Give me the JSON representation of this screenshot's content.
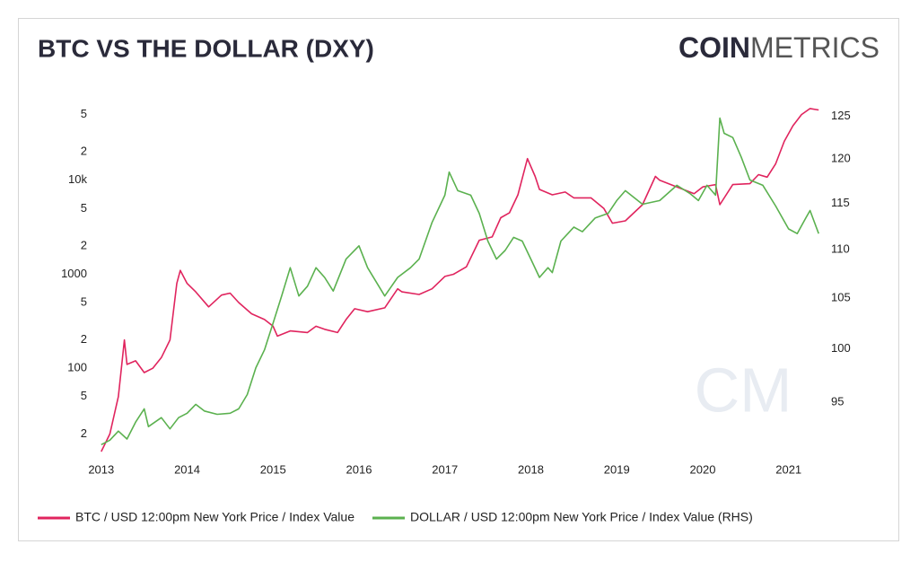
{
  "chart_data": {
    "type": "line",
    "title": "BTC VS THE DOLLAR (DXY)",
    "logo": {
      "bold": "COIN",
      "light": "METRICS"
    },
    "watermark": "CM",
    "xlim": [
      2012.95,
      2021.4
    ],
    "xticks": [
      2013,
      2014,
      2015,
      2016,
      2017,
      2018,
      2019,
      2020,
      2021
    ],
    "log_scale_y": true,
    "ylim": [
      13,
      66000
    ],
    "yticks": [
      {
        "value": 20,
        "label": "2"
      },
      {
        "value": 50,
        "label": "5"
      },
      100,
      {
        "value": 200,
        "label": "2"
      },
      {
        "value": 500,
        "label": "5"
      },
      1000,
      {
        "value": 2000,
        "label": "2"
      },
      {
        "value": 5000,
        "label": "5"
      },
      {
        "value": 10000,
        "label": "10k"
      },
      {
        "value": 20000,
        "label": "2"
      },
      {
        "value": 50000,
        "label": "5"
      }
    ],
    "log_scale_y2": true,
    "y2lim": [
      90.6,
      126.6
    ],
    "y2ticks": [
      95,
      100,
      105,
      110,
      115,
      120,
      125
    ],
    "grid": false,
    "legend": "bottom",
    "series": [
      {
        "name": "BTC / USD 12:00pm New York Price / Index Value",
        "color": "#e0245e",
        "axis": "y",
        "x": [
          2013.0,
          2013.1,
          2013.2,
          2013.27,
          2013.3,
          2013.4,
          2013.5,
          2013.6,
          2013.7,
          2013.8,
          2013.88,
          2013.92,
          2014.0,
          2014.1,
          2014.25,
          2014.4,
          2014.5,
          2014.6,
          2014.75,
          2014.9,
          2015.0,
          2015.05,
          2015.2,
          2015.4,
          2015.5,
          2015.6,
          2015.75,
          2015.85,
          2015.95,
          2016.1,
          2016.3,
          2016.45,
          2016.5,
          2016.7,
          2016.85,
          2017.0,
          2017.1,
          2017.25,
          2017.4,
          2017.55,
          2017.65,
          2017.75,
          2017.85,
          2017.96,
          2018.05,
          2018.1,
          2018.25,
          2018.4,
          2018.5,
          2018.7,
          2018.85,
          2018.95,
          2019.1,
          2019.3,
          2019.45,
          2019.5,
          2019.7,
          2019.9,
          2020.0,
          2020.15,
          2020.2,
          2020.35,
          2020.55,
          2020.65,
          2020.75,
          2020.85,
          2020.95,
          2021.05,
          2021.15,
          2021.25,
          2021.35
        ],
        "values": [
          13,
          20,
          50,
          200,
          110,
          120,
          90,
          100,
          130,
          200,
          800,
          1100,
          800,
          650,
          450,
          600,
          630,
          500,
          380,
          330,
          280,
          220,
          250,
          240,
          280,
          260,
          240,
          330,
          430,
          400,
          440,
          700,
          650,
          610,
          700,
          950,
          1000,
          1200,
          2300,
          2500,
          4000,
          4500,
          7000,
          17000,
          11000,
          8000,
          7000,
          7500,
          6500,
          6500,
          5000,
          3500,
          3700,
          5500,
          11000,
          10000,
          8500,
          7200,
          8500,
          9000,
          5500,
          9000,
          9200,
          11500,
          10800,
          15000,
          26000,
          38000,
          50000,
          58000,
          56000
        ]
      },
      {
        "name": "DOLLAR / USD 12:00pm New York Price / Index Value (RHS)",
        "color": "#5bb14f",
        "axis": "y2",
        "x": [
          2013.0,
          2013.1,
          2013.2,
          2013.3,
          2013.4,
          2013.5,
          2013.55,
          2013.7,
          2013.8,
          2013.9,
          2014.0,
          2014.1,
          2014.2,
          2014.35,
          2014.5,
          2014.6,
          2014.7,
          2014.8,
          2014.9,
          2015.0,
          2015.1,
          2015.2,
          2015.3,
          2015.4,
          2015.5,
          2015.6,
          2015.7,
          2015.85,
          2016.0,
          2016.1,
          2016.3,
          2016.45,
          2016.6,
          2016.7,
          2016.85,
          2017.0,
          2017.05,
          2017.15,
          2017.3,
          2017.4,
          2017.5,
          2017.6,
          2017.7,
          2017.8,
          2017.9,
          2018.0,
          2018.1,
          2018.2,
          2018.25,
          2018.35,
          2018.5,
          2018.6,
          2018.75,
          2018.9,
          2019.0,
          2019.1,
          2019.3,
          2019.5,
          2019.7,
          2019.85,
          2019.95,
          2020.05,
          2020.15,
          2020.2,
          2020.25,
          2020.35,
          2020.45,
          2020.55,
          2020.7,
          2020.85,
          2021.0,
          2021.1,
          2021.2,
          2021.25,
          2021.35
        ],
        "values": [
          91.2,
          91.6,
          92.4,
          91.7,
          93.2,
          94.4,
          92.8,
          93.6,
          92.6,
          93.6,
          94.0,
          94.8,
          94.2,
          93.9,
          94.0,
          94.4,
          95.7,
          98.2,
          99.9,
          102.5,
          105.2,
          108.1,
          105.2,
          106.2,
          108.1,
          107.1,
          105.7,
          109.0,
          110.4,
          108.1,
          105.2,
          107.1,
          108.1,
          109.0,
          112.9,
          115.9,
          118.5,
          116.4,
          115.9,
          113.9,
          110.9,
          109.0,
          109.9,
          111.3,
          110.9,
          109.0,
          107.1,
          108.1,
          107.6,
          110.9,
          112.4,
          111.9,
          113.4,
          113.9,
          115.3,
          116.4,
          114.9,
          115.3,
          117.0,
          116.1,
          115.3,
          117.0,
          115.9,
          124.8,
          123.0,
          122.5,
          120.2,
          117.6,
          117.0,
          114.7,
          112.2,
          111.7,
          113.4,
          114.2,
          111.7
        ]
      }
    ]
  }
}
